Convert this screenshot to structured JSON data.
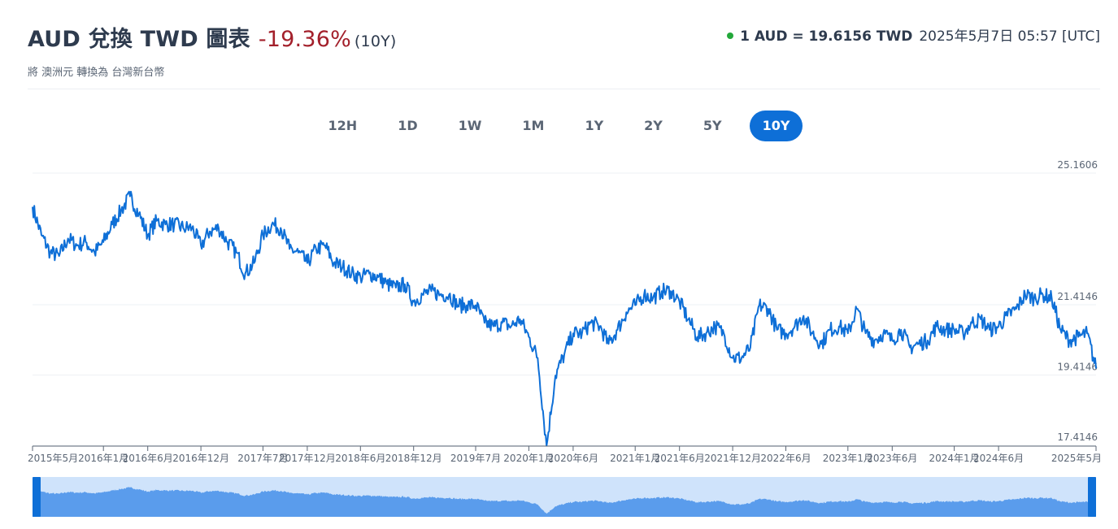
{
  "header": {
    "title": "AUD 兌換 TWD 圖表",
    "change": "-19.36%",
    "period": "(10Y)",
    "rate_quote": "1 AUD = 19.6156 TWD",
    "timestamp": "2025年5月7日 05:57 [UTC]",
    "subtitle": "將 澳洲元 轉換為 台灣新台幣"
  },
  "ranges": [
    {
      "label": "12H",
      "active": false
    },
    {
      "label": "1D",
      "active": false
    },
    {
      "label": "1W",
      "active": false
    },
    {
      "label": "1M",
      "active": false
    },
    {
      "label": "1Y",
      "active": false
    },
    {
      "label": "2Y",
      "active": false
    },
    {
      "label": "5Y",
      "active": false
    },
    {
      "label": "10Y",
      "active": true
    }
  ],
  "colors": {
    "line": "#0e6fd7",
    "navigator_fill": "#5a9cec",
    "navigator_bg": "#cfe3fb",
    "accent": "#0e6fd7",
    "negative": "#a3202b",
    "live_dot": "#23a83a"
  },
  "chart_data": {
    "type": "line",
    "ylim": [
      17.4146,
      25.1606
    ],
    "y_ticks": [
      "25.1606",
      "21.4146",
      "19.4146",
      "17.4146"
    ],
    "y_tick_values": [
      25.1606,
      21.4146,
      19.4146,
      17.4146
    ],
    "x_tick_labels": [
      "2015年5月",
      "2016年1月",
      "2016年6月",
      "2016年12月",
      "2017年7月",
      "2017年12月",
      "2018年6月",
      "2018年12月",
      "2019年7月",
      "2020年1月",
      "2020年6月",
      "2021年1月",
      "2021年6月",
      "2021年12月",
      "2022年6月",
      "2023年1月",
      "2023年6月",
      "2024年1月",
      "2024年6月",
      "2025年5月"
    ],
    "x_tick_dates": [
      "2015-05",
      "2016-01",
      "2016-06",
      "2016-12",
      "2017-07",
      "2017-12",
      "2018-06",
      "2018-12",
      "2019-07",
      "2020-01",
      "2020-06",
      "2021-01",
      "2021-06",
      "2021-12",
      "2022-06",
      "2023-01",
      "2023-06",
      "2024-01",
      "2024-06",
      "2025-05"
    ],
    "series": [
      {
        "x": [
          "2015-05",
          "2015-06",
          "2015-07",
          "2015-08",
          "2015-09",
          "2015-10",
          "2015-11",
          "2015-12",
          "2016-01",
          "2016-02",
          "2016-03",
          "2016-04",
          "2016-05",
          "2016-06",
          "2016-07",
          "2016-08",
          "2016-09",
          "2016-10",
          "2016-11",
          "2016-12",
          "2017-01",
          "2017-02",
          "2017-03",
          "2017-04",
          "2017-05",
          "2017-06",
          "2017-07",
          "2017-08",
          "2017-09",
          "2017-10",
          "2017-11",
          "2017-12",
          "2018-01",
          "2018-02",
          "2018-03",
          "2018-04",
          "2018-05",
          "2018-06",
          "2018-07",
          "2018-08",
          "2018-09",
          "2018-10",
          "2018-11",
          "2018-12",
          "2019-01",
          "2019-02",
          "2019-03",
          "2019-04",
          "2019-05",
          "2019-06",
          "2019-07",
          "2019-08",
          "2019-09",
          "2019-10",
          "2019-11",
          "2019-12",
          "2020-01",
          "2020-02",
          "2020-03",
          "2020-04",
          "2020-05",
          "2020-06",
          "2020-07",
          "2020-08",
          "2020-09",
          "2020-10",
          "2020-11",
          "2020-12",
          "2021-01",
          "2021-02",
          "2021-03",
          "2021-04",
          "2021-05",
          "2021-06",
          "2021-07",
          "2021-08",
          "2021-09",
          "2021-10",
          "2021-11",
          "2021-12",
          "2022-01",
          "2022-02",
          "2022-03",
          "2022-04",
          "2022-05",
          "2022-06",
          "2022-07",
          "2022-08",
          "2022-09",
          "2022-10",
          "2022-11",
          "2022-12",
          "2023-01",
          "2023-02",
          "2023-03",
          "2023-04",
          "2023-05",
          "2023-06",
          "2023-07",
          "2023-08",
          "2023-09",
          "2023-10",
          "2023-11",
          "2023-12",
          "2024-01",
          "2024-02",
          "2024-03",
          "2024-04",
          "2024-05",
          "2024-06",
          "2024-07",
          "2024-08",
          "2024-09",
          "2024-10",
          "2024-11",
          "2024-12",
          "2025-01",
          "2025-02",
          "2025-03",
          "2025-04",
          "2025-05"
        ],
        "values": [
          24.2,
          23.4,
          22.9,
          22.8,
          23.3,
          23.1,
          23.2,
          22.9,
          23.2,
          23.7,
          24.1,
          24.5,
          24.0,
          23.4,
          23.8,
          23.7,
          23.7,
          23.6,
          23.6,
          23.1,
          23.5,
          23.6,
          23.2,
          22.9,
          22.3,
          22.6,
          23.4,
          23.7,
          23.6,
          23.0,
          22.9,
          22.6,
          23.0,
          23.1,
          22.6,
          22.5,
          22.3,
          22.2,
          22.3,
          22.2,
          22.0,
          21.9,
          22.0,
          21.5,
          21.7,
          21.8,
          21.7,
          21.7,
          21.4,
          21.4,
          21.4,
          20.9,
          20.8,
          20.9,
          20.8,
          21.0,
          20.5,
          19.9,
          17.4,
          19.4,
          20.0,
          20.6,
          20.6,
          20.9,
          20.8,
          20.3,
          20.7,
          21.2,
          21.4,
          21.7,
          21.6,
          21.8,
          21.8,
          21.5,
          21.0,
          20.5,
          20.6,
          20.8,
          20.6,
          19.9,
          19.9,
          20.2,
          21.4,
          21.3,
          20.7,
          20.6,
          20.8,
          21.1,
          20.6,
          20.3,
          20.7,
          20.8,
          20.6,
          21.3,
          20.6,
          20.4,
          20.6,
          20.4,
          20.7,
          20.2,
          20.3,
          20.4,
          20.8,
          20.7,
          20.7,
          20.6,
          20.9,
          21.0,
          20.7,
          20.8,
          21.1,
          21.3,
          21.7,
          21.6,
          21.7,
          21.6,
          20.7,
          20.4,
          20.5,
          20.6,
          19.6
        ]
      }
    ]
  }
}
